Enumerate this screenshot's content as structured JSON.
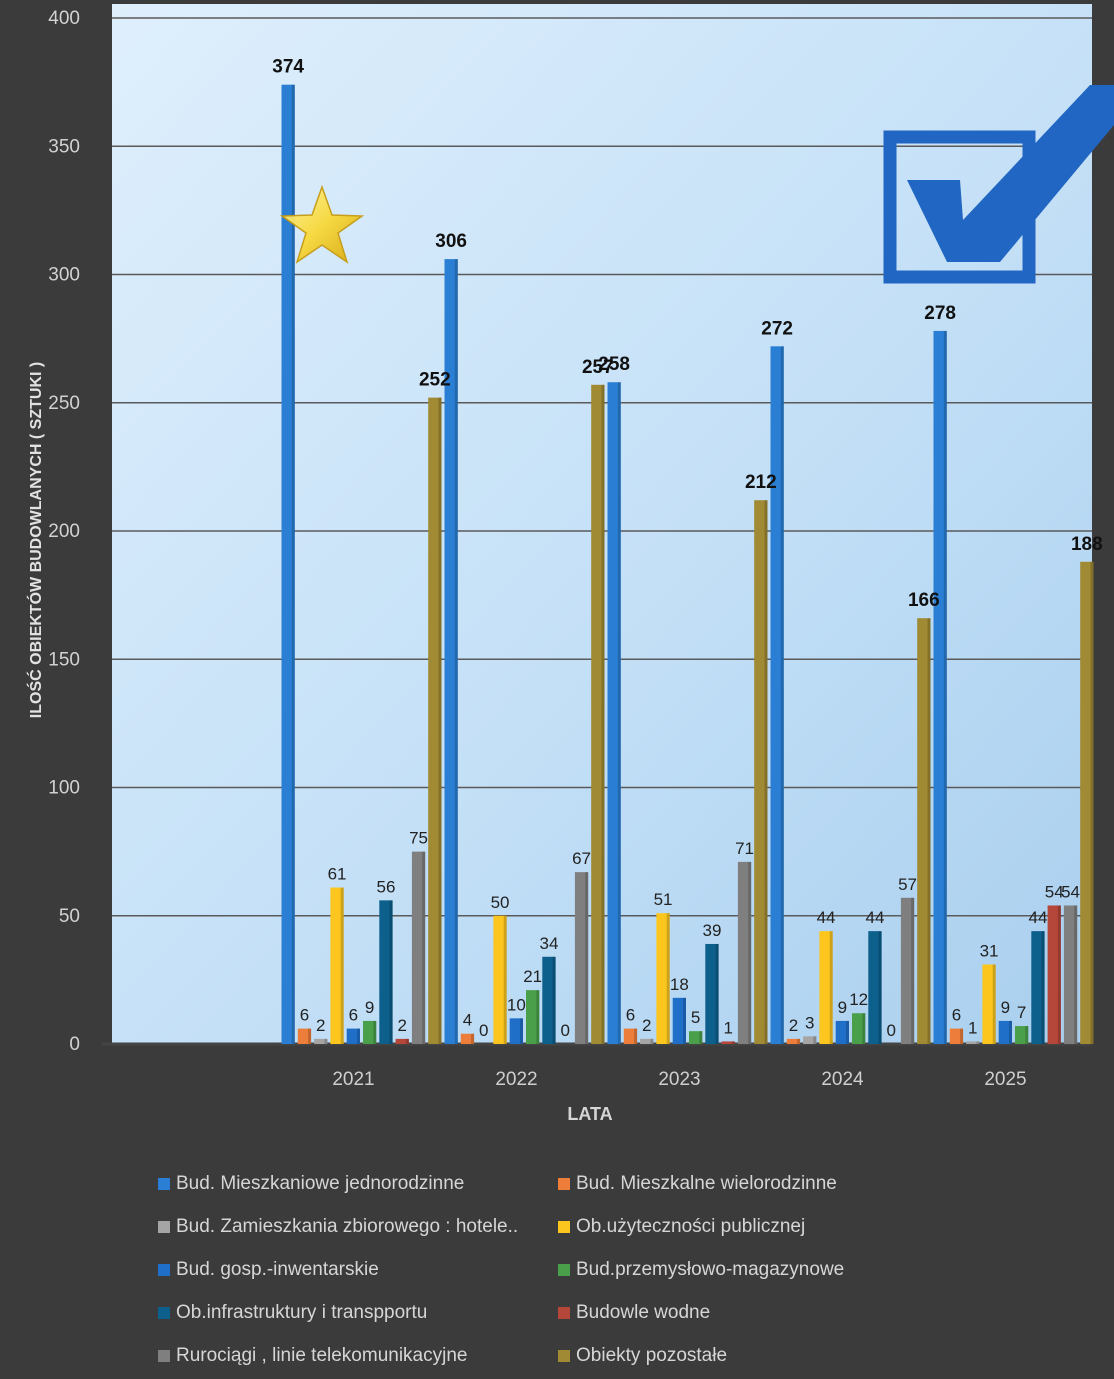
{
  "chart_data": {
    "type": "bar",
    "title": "",
    "xlabel": "LATA",
    "ylabel": "ILOŚĆ OBIEKTÓW BUDOWLANYCH ( SZTUKI )",
    "ylim": [
      0,
      400
    ],
    "yticks": [
      "0",
      "50",
      "100",
      "150",
      "200",
      "250",
      "300",
      "350",
      "400"
    ],
    "categories": [
      "2021",
      "2022",
      "2023",
      "2024",
      "2025"
    ],
    "grid": true,
    "legend_position": "bottom",
    "series": [
      {
        "name": "Bud. Mieszkaniowe jednorodzinne",
        "color": "#2a7fd4",
        "values": [
          374,
          306,
          258,
          272,
          278
        ],
        "labels": [
          "374",
          "306",
          "258",
          "272",
          "278"
        ]
      },
      {
        "name": "Bud. Mieszkalne wielorodzinne",
        "color": "#ec7d3a",
        "values": [
          6,
          4,
          6,
          2,
          6
        ],
        "labels": [
          "6",
          "4",
          "6",
          "2",
          "6"
        ]
      },
      {
        "name": "Bud. Zamieszkania zbiorowego : hotele..",
        "color": "#a5a5a5",
        "values": [
          2,
          0,
          2,
          3,
          1
        ],
        "labels": [
          "2",
          "0",
          "2",
          "3",
          "1"
        ]
      },
      {
        "name": "Ob.użyteczności  publicznej",
        "color": "#fcc61e",
        "values": [
          61,
          50,
          51,
          44,
          31
        ],
        "labels": [
          "61",
          "50",
          "51",
          "44",
          "31"
        ]
      },
      {
        "name": "Bud. gosp.-inwentarskie",
        "color": "#1f6fc8",
        "values": [
          6,
          10,
          18,
          9,
          9
        ],
        "labels": [
          "6",
          "10",
          "18",
          "9",
          "9"
        ]
      },
      {
        "name": "Bud.przemysłowo-magazynowe",
        "color": "#4aa04a",
        "values": [
          9,
          21,
          5,
          12,
          7
        ],
        "labels": [
          "9",
          "21",
          "5",
          "12",
          "7"
        ]
      },
      {
        "name": "Ob.infrastruktury i transpportu",
        "color": "#0d5f8c",
        "values": [
          56,
          34,
          39,
          44,
          44
        ],
        "labels": [
          "56",
          "34",
          "39",
          "44",
          "44"
        ]
      },
      {
        "name": "Budowle wodne",
        "color": "#b5463a",
        "values": [
          2,
          0,
          1,
          0,
          54
        ],
        "labels": [
          "2",
          "0",
          "1",
          "0",
          "54"
        ]
      },
      {
        "name": "Rurociągi , linie telekomunikacyjne",
        "color": "#7f7f7f",
        "values": [
          75,
          67,
          71,
          57,
          54
        ],
        "labels": [
          "75",
          "67",
          "71",
          "57",
          "54"
        ]
      },
      {
        "name": "Obiekty pozostałe",
        "color": "#a08a33",
        "values": [
          252,
          257,
          212,
          166,
          188
        ],
        "labels": [
          "252",
          "257",
          "212",
          "166",
          "188"
        ]
      }
    ]
  }
}
